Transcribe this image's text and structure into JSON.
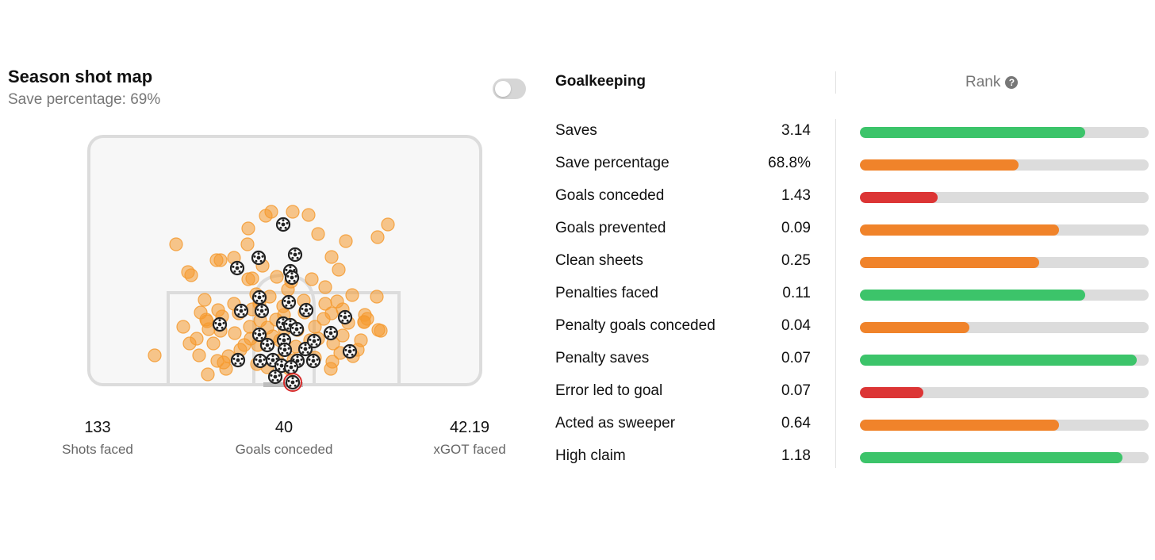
{
  "shot_map": {
    "title": "Season shot map",
    "subtitle": "Save percentage: 69%",
    "toggle_on": false,
    "colors": {
      "miss": "#f59a2f",
      "goal_ball": "#222222",
      "penalty_goal": "#d62b2b",
      "frame": "#dcdcdc"
    },
    "stats": [
      {
        "value": "133",
        "label": "Shots faced"
      },
      {
        "value": "40",
        "label": "Goals conceded"
      },
      {
        "value": "42.19",
        "label": "xGOT faced"
      }
    ]
  },
  "table": {
    "header": "Goalkeeping",
    "rank_header": "Rank",
    "rows": [
      {
        "label": "Saves",
        "value": "3.14",
        "percentile": 0.78,
        "color": "#3cc46a"
      },
      {
        "label": "Save percentage",
        "value": "68.8%",
        "percentile": 0.55,
        "color": "#f0832a"
      },
      {
        "label": "Goals conceded",
        "value": "1.43",
        "percentile": 0.27,
        "color": "#dc3535"
      },
      {
        "label": "Goals prevented",
        "value": "0.09",
        "percentile": 0.69,
        "color": "#f0832a"
      },
      {
        "label": "Clean sheets",
        "value": "0.25",
        "percentile": 0.62,
        "color": "#f0832a"
      },
      {
        "label": "Penalties faced",
        "value": "0.11",
        "percentile": 0.78,
        "color": "#3cc46a"
      },
      {
        "label": "Penalty goals conceded",
        "value": "0.04",
        "percentile": 0.38,
        "color": "#f0832a"
      },
      {
        "label": "Penalty saves",
        "value": "0.07",
        "percentile": 0.96,
        "color": "#3cc46a"
      },
      {
        "label": "Error led to goal",
        "value": "0.07",
        "percentile": 0.22,
        "color": "#dc3535"
      },
      {
        "label": "Acted as sweeper",
        "value": "0.64",
        "percentile": 0.69,
        "color": "#f0832a"
      },
      {
        "label": "High claim",
        "value": "1.18",
        "percentile": 0.91,
        "color": "#3cc46a"
      }
    ]
  }
}
